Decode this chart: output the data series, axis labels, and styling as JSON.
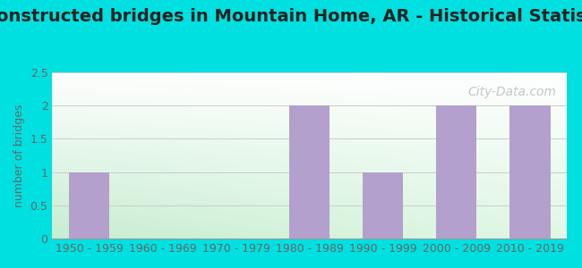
{
  "title": "Reconstructed bridges in Mountain Home, AR - Historical Statistics",
  "categories": [
    "1950 - 1959",
    "1960 - 1969",
    "1970 - 1979",
    "1980 - 1989",
    "1990 - 1999",
    "2000 - 2009",
    "2010 - 2019"
  ],
  "values": [
    1,
    0,
    0,
    2,
    1,
    2,
    2
  ],
  "bar_color": "#b3a0cc",
  "ylabel": "number of bridges",
  "ylim": [
    0,
    2.5
  ],
  "yticks": [
    0,
    0.5,
    1,
    1.5,
    2,
    2.5
  ],
  "background_outer": "#00e0e0",
  "grad_top_left": "#e6f5e6",
  "grad_top_right": "#f8ffff",
  "grad_bottom_left": "#c8ecd0",
  "grad_bottom_right": "#e8f8f0",
  "grid_color": "#cccccc",
  "title_fontsize": 14,
  "ylabel_fontsize": 9,
  "tick_fontsize": 9,
  "watermark_text": "City-Data.com",
  "watermark_color": "#aaaaaa",
  "bar_width": 0.55
}
